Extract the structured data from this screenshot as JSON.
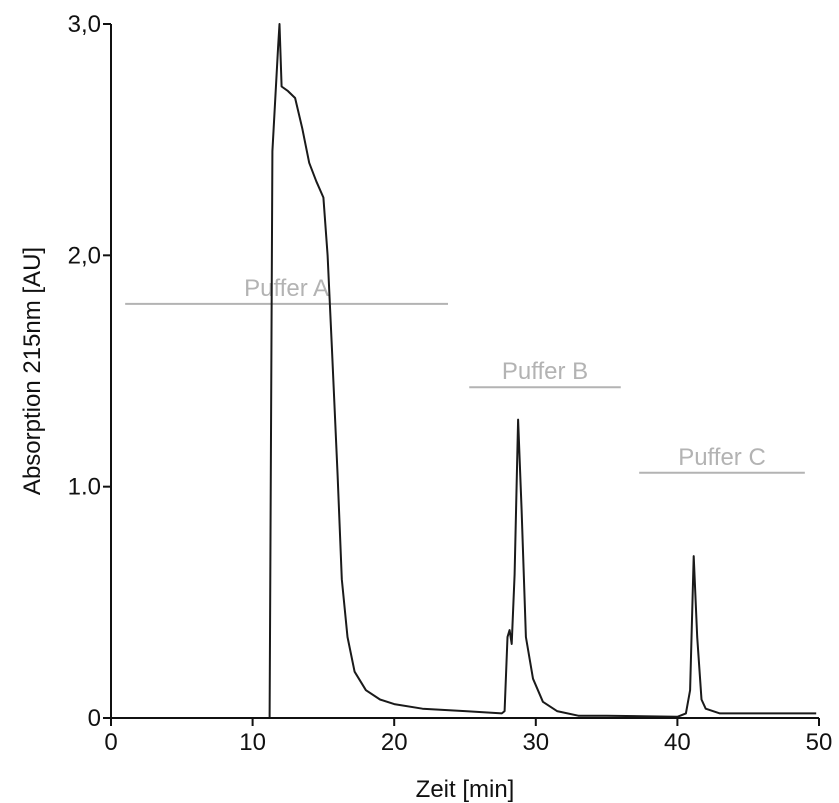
{
  "chart_data": {
    "type": "line",
    "title": "",
    "xlabel": "Zeit [min]",
    "ylabel": "Absorption 215nm [AU]",
    "xlim": [
      0,
      50
    ],
    "ylim": [
      0,
      3.0
    ],
    "grid": false,
    "x_ticks": [
      {
        "value": 0,
        "label": "0"
      },
      {
        "value": 10,
        "label": "10"
      },
      {
        "value": 20,
        "label": "20"
      },
      {
        "value": 30,
        "label": "30"
      },
      {
        "value": 40,
        "label": "40"
      },
      {
        "value": 50,
        "label": "50"
      }
    ],
    "y_ticks": [
      {
        "value": 0,
        "label": "0"
      },
      {
        "value": 1.0,
        "label": "1.0"
      },
      {
        "value": 2.0,
        "label": "2,0"
      },
      {
        "value": 3.0,
        "label": "3,0"
      }
    ],
    "series": [
      {
        "color": "#1a1a1a",
        "points": [
          [
            0,
            0.0
          ],
          [
            5,
            0.0
          ],
          [
            10,
            0.0
          ],
          [
            11.2,
            0.0
          ],
          [
            11.4,
            2.45
          ],
          [
            11.8,
            2.9
          ],
          [
            11.9,
            3.0
          ],
          [
            12.05,
            2.73
          ],
          [
            12.5,
            2.71
          ],
          [
            13.0,
            2.68
          ],
          [
            13.5,
            2.55
          ],
          [
            14.0,
            2.4
          ],
          [
            14.5,
            2.32
          ],
          [
            15.0,
            2.25
          ],
          [
            15.3,
            2.0
          ],
          [
            15.6,
            1.6
          ],
          [
            16.0,
            1.05
          ],
          [
            16.3,
            0.6
          ],
          [
            16.7,
            0.35
          ],
          [
            17.2,
            0.2
          ],
          [
            18.0,
            0.12
          ],
          [
            19.0,
            0.08
          ],
          [
            20.0,
            0.06
          ],
          [
            22.0,
            0.04
          ],
          [
            25.0,
            0.03
          ],
          [
            27.6,
            0.02
          ],
          [
            27.8,
            0.03
          ],
          [
            28.0,
            0.35
          ],
          [
            28.15,
            0.38
          ],
          [
            28.3,
            0.32
          ],
          [
            28.5,
            0.62
          ],
          [
            28.75,
            1.29
          ],
          [
            29.0,
            0.9
          ],
          [
            29.3,
            0.35
          ],
          [
            29.8,
            0.17
          ],
          [
            30.5,
            0.07
          ],
          [
            31.5,
            0.03
          ],
          [
            33.0,
            0.01
          ],
          [
            35.0,
            0.01
          ],
          [
            40.0,
            0.005
          ],
          [
            40.6,
            0.02
          ],
          [
            40.9,
            0.12
          ],
          [
            41.15,
            0.7
          ],
          [
            41.4,
            0.35
          ],
          [
            41.7,
            0.08
          ],
          [
            42.0,
            0.04
          ],
          [
            43.0,
            0.02
          ],
          [
            45.0,
            0.02
          ],
          [
            48.0,
            0.02
          ],
          [
            49.8,
            0.02
          ]
        ]
      }
    ],
    "annotations": [
      {
        "text": "Puffer A",
        "x_start": 1.0,
        "x_end": 23.8,
        "y": 1.79,
        "color": "#b3b3b3"
      },
      {
        "text": "Puffer B",
        "x_start": 25.3,
        "x_end": 36.0,
        "y": 1.43,
        "color": "#b3b3b3"
      },
      {
        "text": "Puffer C",
        "x_start": 37.3,
        "x_end": 49.0,
        "y": 1.06,
        "color": "#b3b3b3"
      }
    ]
  }
}
